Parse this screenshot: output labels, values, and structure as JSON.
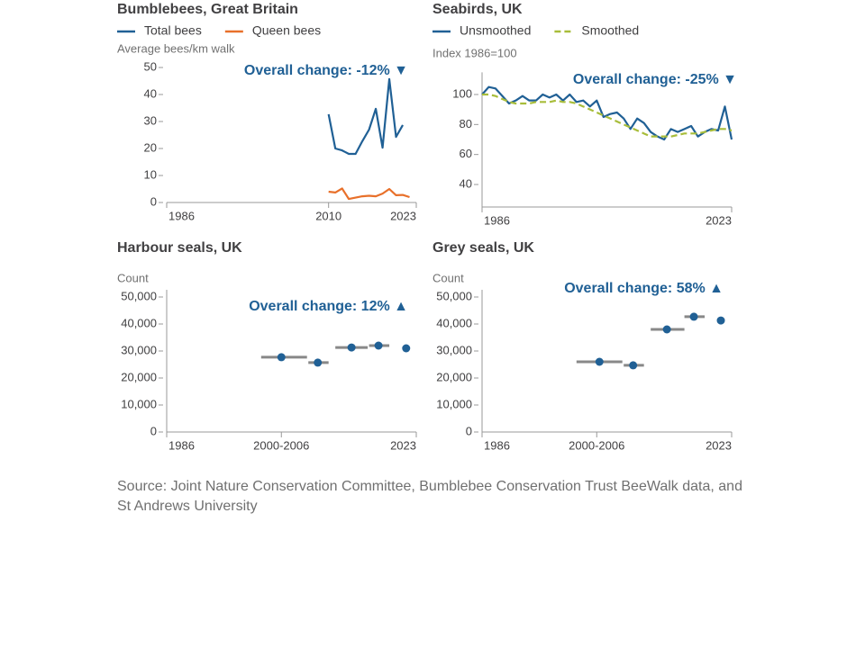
{
  "chart_data": [
    {
      "type": "line",
      "title": "Bumblebees, Great Britain",
      "y_label": "Average bees/km walk",
      "annotation": "Overall change: -12% ▼",
      "xlim": [
        1986,
        2023
      ],
      "xticks": [
        1986,
        2010,
        2023
      ],
      "ylim": [
        0,
        50
      ],
      "yticks": [
        0,
        10,
        20,
        30,
        40,
        50
      ],
      "series": [
        {
          "name": "Total bees",
          "color": "#206095",
          "x": [
            2010,
            2011,
            2012,
            2013,
            2014,
            2015,
            2016,
            2017,
            2018,
            2019,
            2020,
            2021
          ],
          "values": [
            32.7,
            20,
            19.3,
            18,
            18,
            22.7,
            27,
            34.7,
            20.3,
            45.7,
            24.3,
            28.7
          ]
        },
        {
          "name": "Queen bees",
          "color": "#e8702a",
          "x": [
            2010,
            2011,
            2012,
            2013,
            2014,
            2015,
            2016,
            2017,
            2018,
            2019,
            2020,
            2021,
            2022
          ],
          "values": [
            4,
            3.7,
            5.2,
            1.3,
            1.8,
            2.3,
            2.5,
            2.3,
            3.3,
            5,
            2.7,
            2.8,
            2
          ]
        }
      ]
    },
    {
      "type": "line",
      "title": "Seabirds, UK",
      "y_label": "Index 1986=100",
      "annotation": "Overall change: -25% ▼",
      "xlim": [
        1986,
        2023
      ],
      "xticks": [
        1986,
        2023
      ],
      "ylim": [
        25,
        110
      ],
      "yticks": [
        40,
        60,
        80,
        100
      ],
      "series": [
        {
          "name": "Unsmoothed",
          "color": "#206095",
          "x": [
            1986,
            1987,
            1988,
            1989,
            1990,
            1991,
            1992,
            1993,
            1994,
            1995,
            1996,
            1997,
            1998,
            1999,
            2000,
            2001,
            2002,
            2003,
            2004,
            2005,
            2006,
            2007,
            2008,
            2009,
            2010,
            2011,
            2012,
            2013,
            2014,
            2015,
            2016,
            2017,
            2018,
            2019,
            2020,
            2021,
            2022,
            2023
          ],
          "values": [
            100,
            105,
            104,
            99,
            94,
            96,
            99,
            96,
            96,
            100,
            98,
            100,
            96,
            100,
            95,
            96,
            92,
            96,
            85,
            87,
            88,
            84,
            77,
            84,
            81,
            75,
            72,
            70,
            77,
            75,
            77,
            79,
            72,
            75,
            77,
            76,
            92,
            70
          ]
        },
        {
          "name": "Smoothed",
          "color": "#a8bd3a",
          "style": "dashed",
          "x": [
            1986,
            1987,
            1988,
            1989,
            1990,
            1991,
            1992,
            1993,
            1994,
            1995,
            1996,
            1997,
            1998,
            1999,
            2000,
            2001,
            2002,
            2003,
            2004,
            2005,
            2006,
            2007,
            2008,
            2009,
            2010,
            2011,
            2012,
            2013,
            2014,
            2015,
            2016,
            2017,
            2018,
            2019,
            2020,
            2021,
            2022,
            2023
          ],
          "values": [
            100,
            100,
            99,
            97,
            95,
            94,
            94,
            94,
            95,
            95,
            95,
            96,
            95,
            95,
            94,
            92,
            90,
            88,
            86,
            84,
            82,
            80,
            78,
            76,
            74,
            72,
            72,
            72,
            72,
            73,
            74,
            74,
            74,
            75,
            76,
            77,
            77,
            76
          ]
        }
      ]
    },
    {
      "type": "scatter",
      "title": "Harbour seals, UK",
      "y_label": "Count",
      "annotation": "Overall change: 12% ▲",
      "xlim": [
        1986,
        2023
      ],
      "xticks": [
        1986,
        {
          "value": 2003,
          "label": "2000-2006"
        },
        2023
      ],
      "ylim": [
        0,
        50000
      ],
      "yticks": [
        0,
        {
          "value": 10000,
          "label": "10,000"
        },
        {
          "value": 20000,
          "label": "20,000"
        },
        {
          "value": 30000,
          "label": "30,000"
        },
        {
          "value": 40000,
          "label": "40,000"
        },
        {
          "value": 50000,
          "label": "50,000"
        }
      ],
      "color": "#206095",
      "range_color": "#888888",
      "x": [
        2003,
        2008.4,
        2013.4,
        2017.4,
        2021.5
      ],
      "xmin": [
        2000,
        2007,
        2011,
        2016,
        null
      ],
      "xmax": [
        2006.8,
        2010,
        2015.8,
        2019,
        null
      ],
      "values": [
        27700,
        25700,
        31300,
        32000,
        31000
      ]
    },
    {
      "type": "scatter",
      "title": "Grey seals, UK",
      "y_label": "Count",
      "annotation": "Overall change: 58% ▲",
      "xlim": [
        1986,
        2023
      ],
      "xticks": [
        1986,
        {
          "value": 2003,
          "label": "2000-2006"
        },
        2023
      ],
      "ylim": [
        0,
        50000
      ],
      "yticks": [
        0,
        {
          "value": 10000,
          "label": "10,000"
        },
        {
          "value": 20000,
          "label": "20,000"
        },
        {
          "value": 30000,
          "label": "30,000"
        },
        {
          "value": 40000,
          "label": "40,000"
        },
        {
          "value": 50000,
          "label": "50,000"
        }
      ],
      "color": "#206095",
      "range_color": "#888888",
      "x": [
        2003.4,
        2008.4,
        2013.4,
        2017.4,
        2021.4
      ],
      "xmin": [
        2000,
        2007,
        2011,
        2016,
        null
      ],
      "xmax": [
        2006.8,
        2010,
        2016,
        2019,
        null
      ],
      "values": [
        26000,
        24700,
        38000,
        42700,
        41300
      ]
    }
  ],
  "source": "Source: Joint Nature Conservation Committee, Bumblebee Conservation Trust BeeWalk data, and St Andrews University"
}
